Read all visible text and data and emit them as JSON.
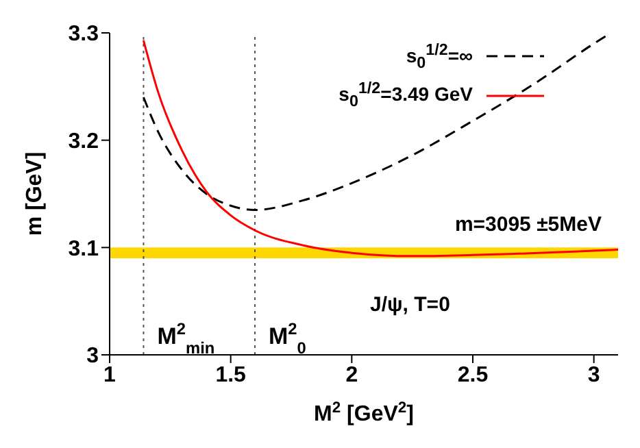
{
  "chart_data": {
    "type": "line",
    "xlabel": "M$^{2}$ [GeV$^{2}$]",
    "ylabel": "m [GeV]",
    "xlim": [
      1,
      3.1
    ],
    "xticks": [
      1,
      1.5,
      2,
      2.5,
      3
    ],
    "ylim": [
      3,
      3.3
    ],
    "yticks": [
      3,
      3.1,
      3.2,
      3.3
    ],
    "legend": "top right",
    "marker": "none",
    "series": [
      {
        "name": "s$_{0}$$^{1/2}$=∞",
        "color": "#000000",
        "line_style": "dashed",
        "x": [
          1.14,
          1.2,
          1.3,
          1.4,
          1.5,
          1.6,
          1.8,
          2.0,
          2.25,
          2.5,
          2.75,
          3.0,
          3.07
        ],
        "values": [
          3.24,
          3.208,
          3.172,
          3.15,
          3.139,
          3.135,
          3.144,
          3.16,
          3.186,
          3.218,
          3.252,
          3.29,
          3.3
        ]
      },
      {
        "name": "s$_{0}$$^{1/2}$=3.49 GeV",
        "color": "#ff0000",
        "line_style": "solid",
        "x": [
          1.14,
          1.2,
          1.3,
          1.4,
          1.5,
          1.6,
          1.8,
          2.0,
          2.25,
          2.5,
          3.0,
          3.1
        ],
        "values": [
          3.293,
          3.245,
          3.19,
          3.152,
          3.13,
          3.116,
          3.102,
          3.095,
          3.092,
          3.093,
          3.097,
          3.098
        ]
      }
    ],
    "bands": [
      {
        "axis": "y",
        "from": 3.09,
        "to": 3.1,
        "label": "m=3095 ±5MeV",
        "color": "#ffd700"
      }
    ],
    "ref_lines": [
      {
        "axis": "x",
        "value": 1.14,
        "label": "M$^{2}$$_{min}$",
        "line_style": "dotted",
        "color": "#555555"
      },
      {
        "axis": "x",
        "value": 1.6,
        "label": "M$^{2}$$_{0}$",
        "line_style": "dotted",
        "color": "#555555"
      }
    ],
    "annotations": [
      "J/ψ, T=0"
    ]
  }
}
